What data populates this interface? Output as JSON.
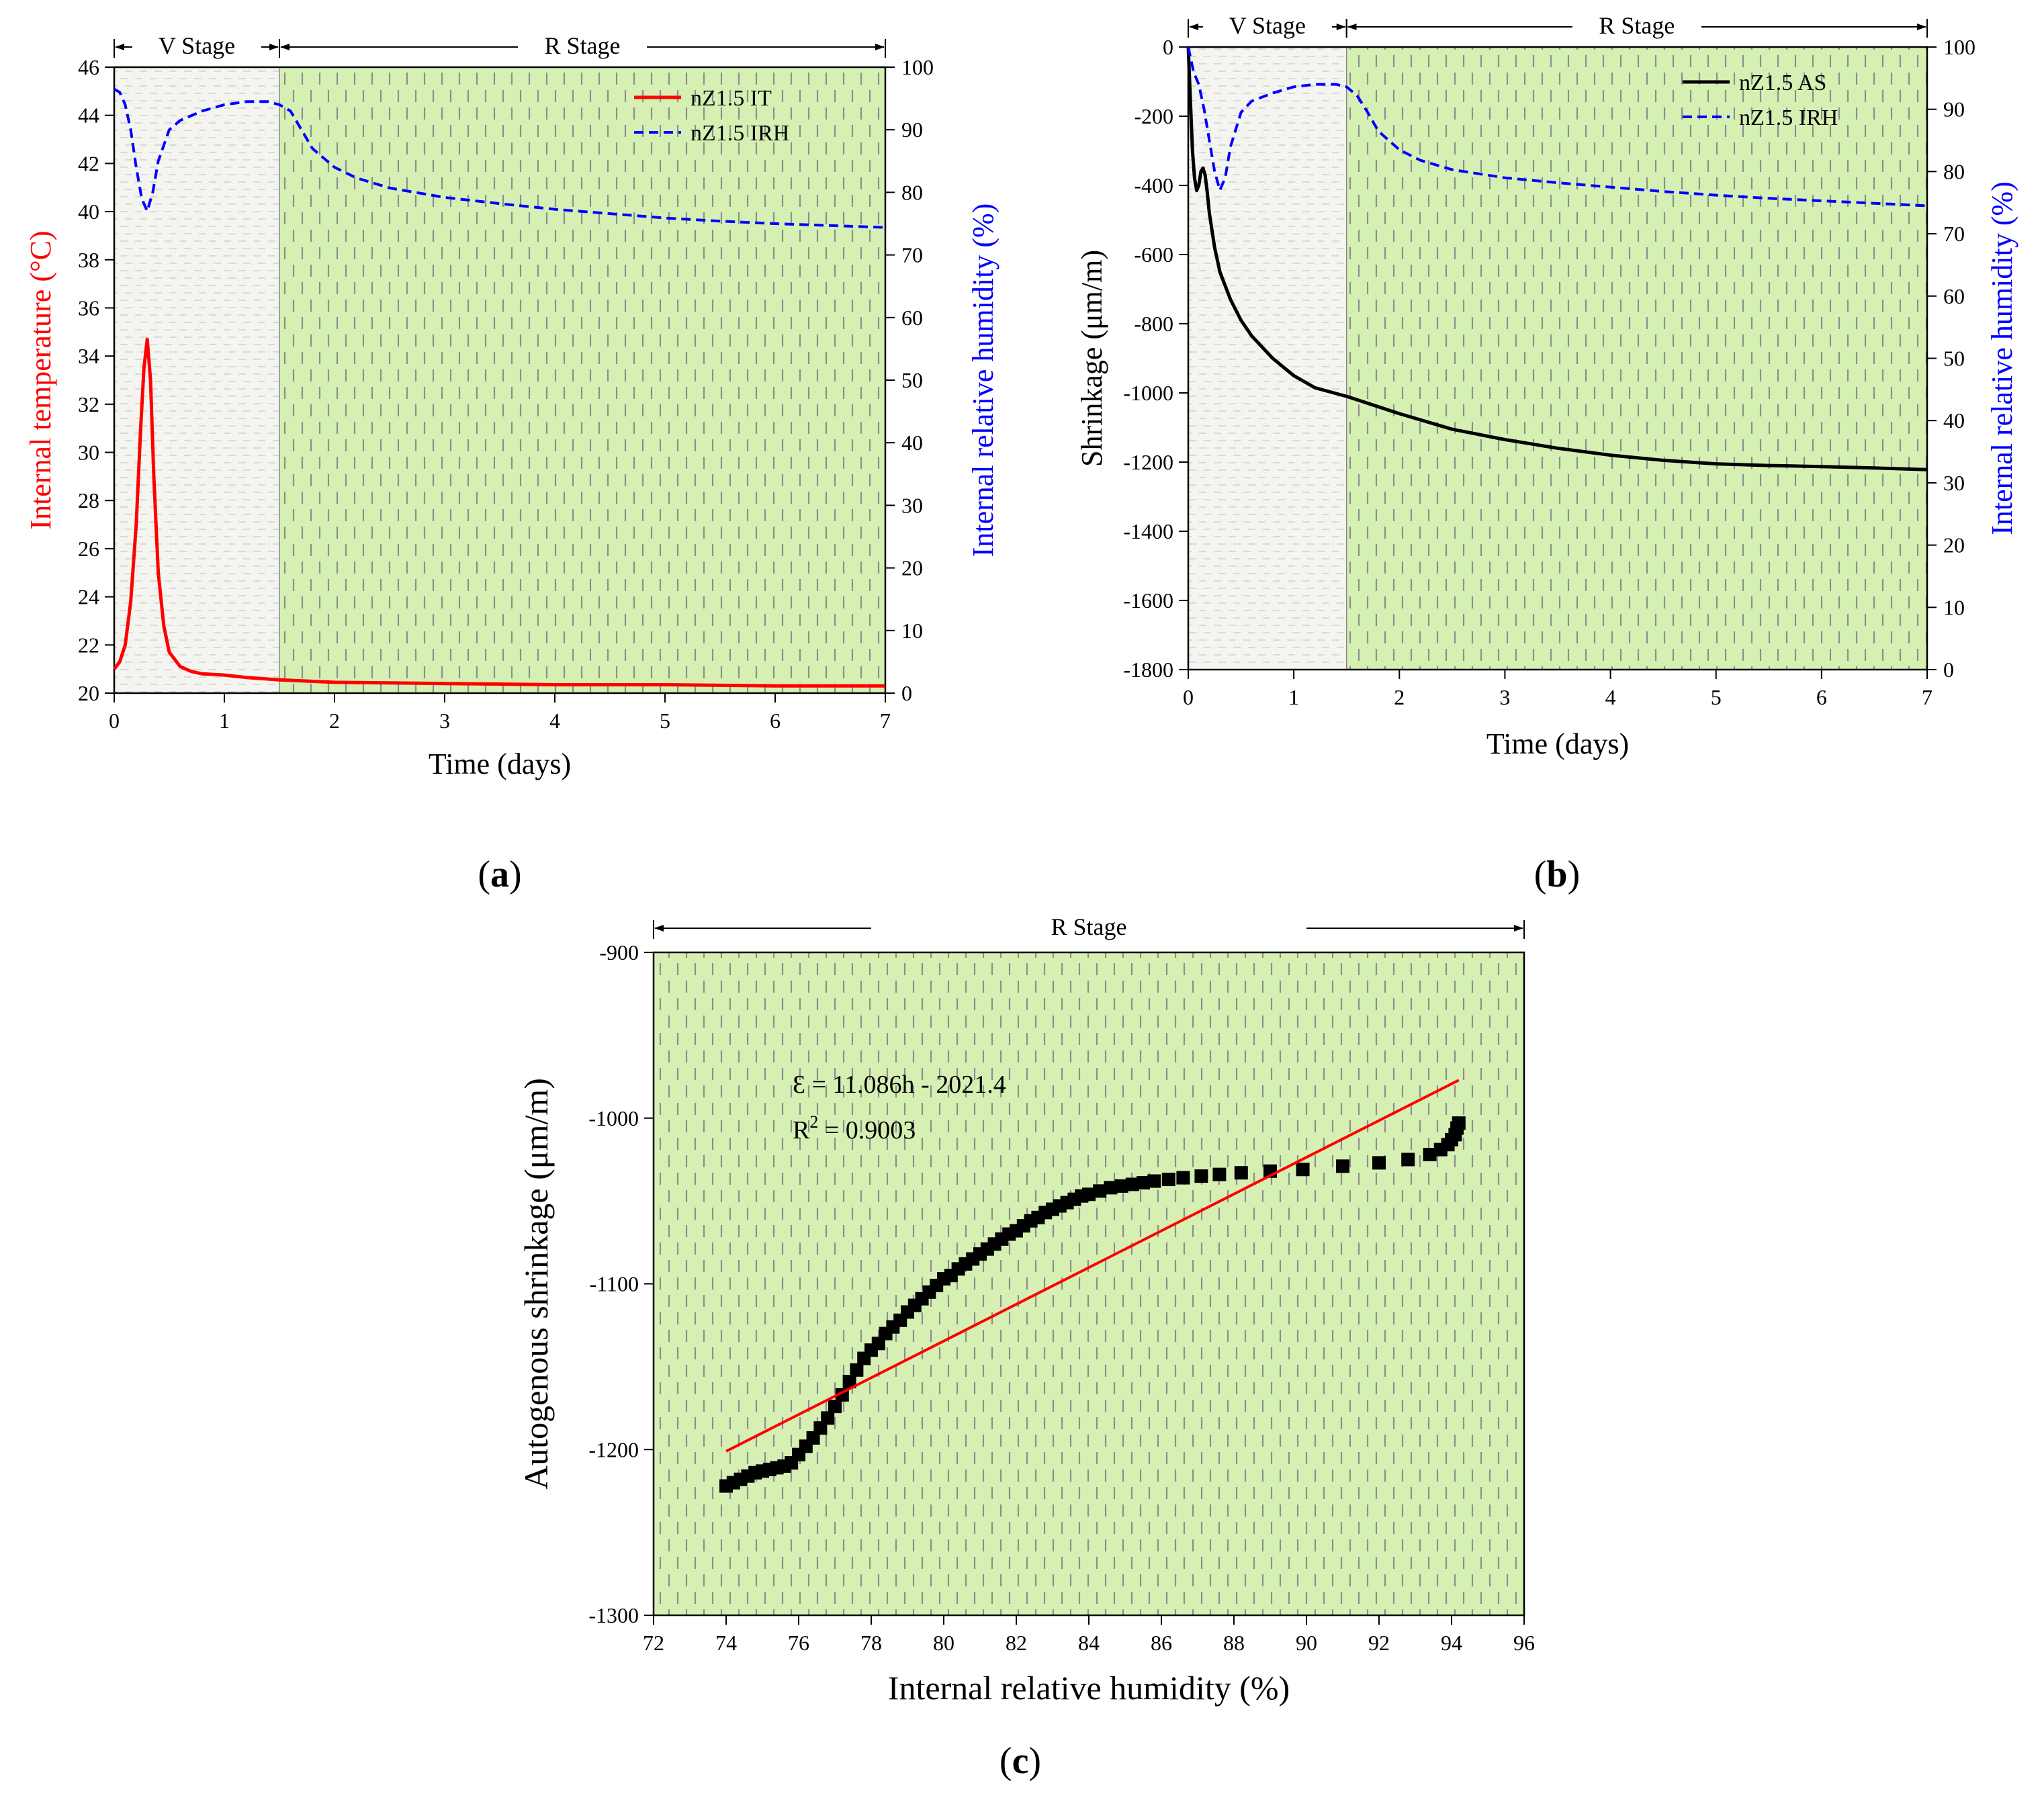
{
  "colors": {
    "red": "#ff0000",
    "blue": "#0000ff",
    "black": "#000000",
    "green_fill": "#d6f0b4",
    "grey_fill": "#f4f4f1",
    "dash": "#8e8e8e"
  },
  "chart_data": [
    {
      "id": "a",
      "panel_label": "(a)",
      "panel_label_inner": "a",
      "type": "line",
      "xlabel": "Time (days)",
      "ylabel_left": "Internal temperature (°C)",
      "ylabel_right": "Internal relative humidity (%)",
      "xlim": [
        0,
        7
      ],
      "ylim_left": [
        20,
        46
      ],
      "ylim_right": [
        0,
        100
      ],
      "x_ticks": [
        "0",
        "1",
        "2",
        "3",
        "4",
        "5",
        "6",
        "7"
      ],
      "y_left_ticks": [
        "20",
        "22",
        "24",
        "26",
        "28",
        "30",
        "32",
        "34",
        "36",
        "38",
        "40",
        "42",
        "44",
        "46"
      ],
      "y_right_ticks": [
        "0",
        "10",
        "20",
        "30",
        "40",
        "50",
        "60",
        "70",
        "80",
        "90",
        "100"
      ],
      "stages": [
        {
          "label": "V Stage",
          "from": 0,
          "to": 1.5
        },
        {
          "label": "R Stage",
          "from": 1.5,
          "to": 7
        }
      ],
      "legend": [
        "nZ1.5 IT",
        "nZ1.5 IRH"
      ],
      "series": [
        {
          "name": "nZ1.5 IT",
          "axis": "left",
          "style": "solid",
          "color": "#ff0000",
          "x": [
            0,
            0.05,
            0.1,
            0.15,
            0.2,
            0.24,
            0.27,
            0.3,
            0.33,
            0.36,
            0.4,
            0.45,
            0.5,
            0.6,
            0.7,
            0.8,
            1.0,
            1.2,
            1.5,
            2.0,
            3.0,
            4.0,
            5.0,
            6.0,
            6.5,
            7.0
          ],
          "y": [
            21.0,
            21.3,
            22.0,
            23.8,
            27.0,
            31.0,
            33.5,
            34.7,
            33.0,
            29.0,
            25.0,
            22.8,
            21.7,
            21.1,
            20.9,
            20.8,
            20.75,
            20.65,
            20.55,
            20.45,
            20.4,
            20.35,
            20.35,
            20.3,
            20.3,
            20.3
          ]
        },
        {
          "name": "nZ1.5 IRH",
          "axis": "right",
          "style": "dashed",
          "color": "#0000ff",
          "x": [
            0,
            0.05,
            0.1,
            0.15,
            0.2,
            0.25,
            0.3,
            0.35,
            0.4,
            0.5,
            0.6,
            0.8,
            1.0,
            1.2,
            1.4,
            1.5,
            1.6,
            1.7,
            1.8,
            2.0,
            2.2,
            2.5,
            3.0,
            3.5,
            4.0,
            4.5,
            5.0,
            5.5,
            6.0,
            6.5,
            7.0
          ],
          "y": [
            96.5,
            96,
            94,
            90,
            84,
            79,
            77,
            80,
            85,
            90,
            91.5,
            93,
            94,
            94.5,
            94.5,
            94,
            93,
            90,
            87,
            84,
            82.3,
            80.7,
            79.2,
            78.2,
            77.3,
            76.6,
            75.9,
            75.4,
            75.0,
            74.7,
            74.4
          ]
        }
      ]
    },
    {
      "id": "b",
      "panel_label": "(b)",
      "panel_label_inner": "b",
      "type": "line",
      "xlabel": "Time (days)",
      "ylabel_left": "Shrinkage (μm/m)",
      "ylabel_right": "Internal relative humidity (%)",
      "xlim": [
        0,
        7
      ],
      "ylim_left": [
        -1800,
        0
      ],
      "ylim_right": [
        0,
        100
      ],
      "x_ticks": [
        "0",
        "1",
        "2",
        "3",
        "4",
        "5",
        "6",
        "7"
      ],
      "y_left_ticks": [
        "-1800",
        "-1600",
        "-1400",
        "-1200",
        "-1000",
        "-800",
        "-600",
        "-400",
        "-200",
        "0"
      ],
      "y_right_ticks": [
        "0",
        "10",
        "20",
        "30",
        "40",
        "50",
        "60",
        "70",
        "80",
        "90",
        "100"
      ],
      "stages": [
        {
          "label": "V Stage",
          "from": 0,
          "to": 1.5
        },
        {
          "label": "R Stage",
          "from": 1.5,
          "to": 7
        }
      ],
      "legend": [
        "nZ1.5 AS",
        "nZ1.5 IRH"
      ],
      "series": [
        {
          "name": "nZ1.5 AS",
          "axis": "left",
          "style": "solid",
          "color": "#000000",
          "x": [
            0,
            0.02,
            0.04,
            0.06,
            0.08,
            0.1,
            0.12,
            0.14,
            0.16,
            0.18,
            0.2,
            0.25,
            0.3,
            0.4,
            0.5,
            0.6,
            0.8,
            1.0,
            1.2,
            1.5,
            2.0,
            2.5,
            3.0,
            3.5,
            4.0,
            4.5,
            5.0,
            5.5,
            6.0,
            6.5,
            7.0
          ],
          "y": [
            0,
            -150,
            -300,
            -380,
            -415,
            -400,
            -360,
            -350,
            -370,
            -420,
            -480,
            -580,
            -650,
            -730,
            -790,
            -835,
            -900,
            -950,
            -985,
            -1010,
            -1060,
            -1105,
            -1135,
            -1160,
            -1180,
            -1195,
            -1205,
            -1210,
            -1213,
            -1217,
            -1222
          ]
        },
        {
          "name": "nZ1.5 IRH",
          "axis": "right",
          "style": "dashed",
          "color": "#0000ff",
          "x": [
            0,
            0.05,
            0.1,
            0.15,
            0.2,
            0.25,
            0.3,
            0.35,
            0.4,
            0.5,
            0.6,
            0.8,
            1.0,
            1.2,
            1.4,
            1.5,
            1.6,
            1.7,
            1.8,
            2.0,
            2.2,
            2.5,
            3.0,
            3.5,
            4.0,
            4.5,
            5.0,
            5.5,
            6.0,
            6.5,
            7.0
          ],
          "y": [
            100,
            96,
            94,
            90,
            85,
            80,
            77,
            79,
            84,
            89.5,
            91.3,
            92.6,
            93.6,
            94.0,
            94.0,
            93.6,
            92.2,
            89.5,
            86.5,
            83.5,
            81.8,
            80.3,
            79.0,
            78.2,
            77.5,
            76.8,
            76.2,
            75.7,
            75.3,
            74.9,
            74.5
          ]
        }
      ]
    },
    {
      "id": "c",
      "panel_label": "(c)",
      "panel_label_inner": "c",
      "type": "scatter",
      "xlabel": "Internal relative humidity (%)",
      "ylabel": "Autogenous shrinkage (μm/m)",
      "xlim": [
        72,
        96
      ],
      "ylim": [
        -1300,
        -900
      ],
      "x_ticks": [
        "72",
        "74",
        "76",
        "78",
        "80",
        "82",
        "84",
        "86",
        "88",
        "90",
        "92",
        "94",
        "96"
      ],
      "y_ticks": [
        "-1300",
        "-1200",
        "-1100",
        "-1000",
        "-900"
      ],
      "stages": [
        {
          "label": "R Stage",
          "from": 72,
          "to": 96
        }
      ],
      "equation": "Ɛ = 11.086h - 2021.4",
      "r2_prefix": "R",
      "r2_sup": "2",
      "r2_suffix": " = 0.9003",
      "fit": {
        "slope": 11.086,
        "intercept": -2021.4,
        "x_range": [
          74,
          94.2
        ],
        "color": "#ff0000"
      },
      "points_x": [
        74.0,
        74.2,
        74.4,
        74.6,
        74.8,
        75.0,
        75.2,
        75.4,
        75.6,
        75.8,
        76.0,
        76.2,
        76.4,
        76.6,
        76.8,
        77.0,
        77.2,
        77.4,
        77.6,
        77.8,
        78.0,
        78.2,
        78.4,
        78.6,
        78.8,
        79.0,
        79.2,
        79.4,
        79.6,
        79.8,
        80.0,
        80.2,
        80.4,
        80.6,
        80.8,
        81.0,
        81.2,
        81.4,
        81.6,
        81.8,
        82.0,
        82.2,
        82.4,
        82.6,
        82.8,
        83.0,
        83.2,
        83.4,
        83.6,
        83.8,
        84.0,
        84.3,
        84.6,
        84.9,
        85.2,
        85.5,
        85.8,
        86.2,
        86.6,
        87.1,
        87.6,
        88.2,
        89.0,
        89.9,
        91.0,
        92.0,
        92.8,
        93.4,
        93.7,
        93.9,
        94.0,
        94.1,
        94.15,
        94.2
      ],
      "points_y": [
        -1222,
        -1220,
        -1218,
        -1216,
        -1214,
        -1213,
        -1212,
        -1211,
        -1210,
        -1208,
        -1203,
        -1198,
        -1193,
        -1187,
        -1181,
        -1174,
        -1167,
        -1159,
        -1152,
        -1145,
        -1140,
        -1136,
        -1130,
        -1126,
        -1122,
        -1117,
        -1113,
        -1109,
        -1105,
        -1101,
        -1097,
        -1095,
        -1091,
        -1088,
        -1085,
        -1082,
        -1079,
        -1076,
        -1073,
        -1070,
        -1068,
        -1065,
        -1062,
        -1060,
        -1057,
        -1055,
        -1053,
        -1051,
        -1049,
        -1047,
        -1046,
        -1044,
        -1042,
        -1041,
        -1040,
        -1039,
        -1038,
        -1037,
        -1036,
        -1035,
        -1034,
        -1033,
        -1032,
        -1031,
        -1029,
        -1027,
        -1025,
        -1022,
        -1019,
        -1016,
        -1013,
        -1010,
        -1006,
        -1003
      ]
    }
  ]
}
